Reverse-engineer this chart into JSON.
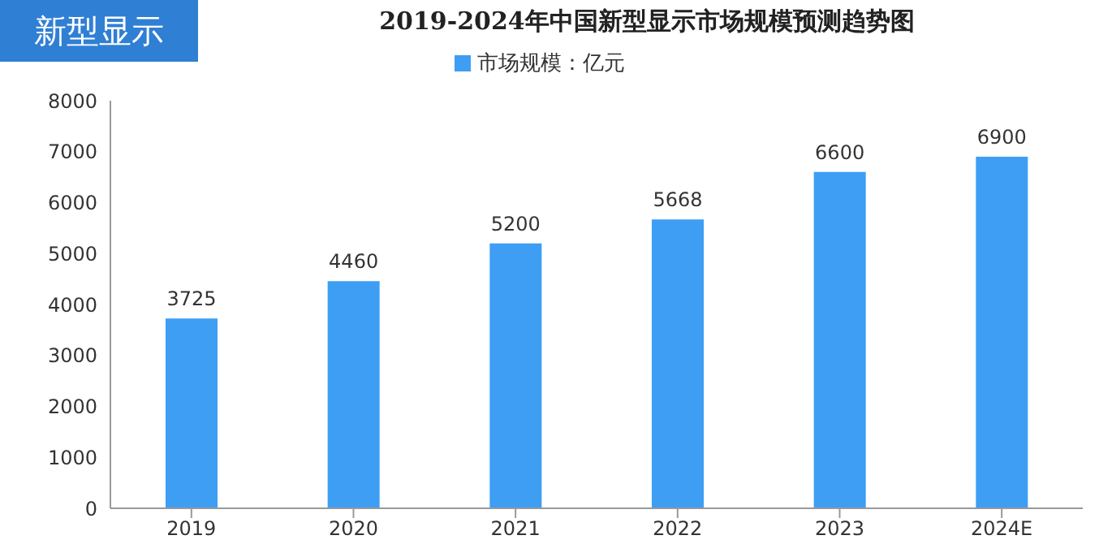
{
  "chart_data": {
    "type": "bar",
    "title": "2019-2024年中国新型显示市场规模预测趋势图",
    "categories": [
      "2019",
      "2020",
      "2021",
      "2022",
      "2023",
      "2024E"
    ],
    "series": [
      {
        "name": "市场规模：亿元",
        "color": "#3d9ef4",
        "values": [
          3725,
          4460,
          5200,
          5668,
          6600,
          6900
        ]
      }
    ],
    "ylim": [
      0,
      8000
    ],
    "yticks": [
      0,
      1000,
      2000,
      3000,
      4000,
      5000,
      6000,
      7000,
      8000
    ],
    "data_labels": true,
    "legend": "top",
    "grid": false,
    "annotations": [
      "新型显示"
    ]
  }
}
